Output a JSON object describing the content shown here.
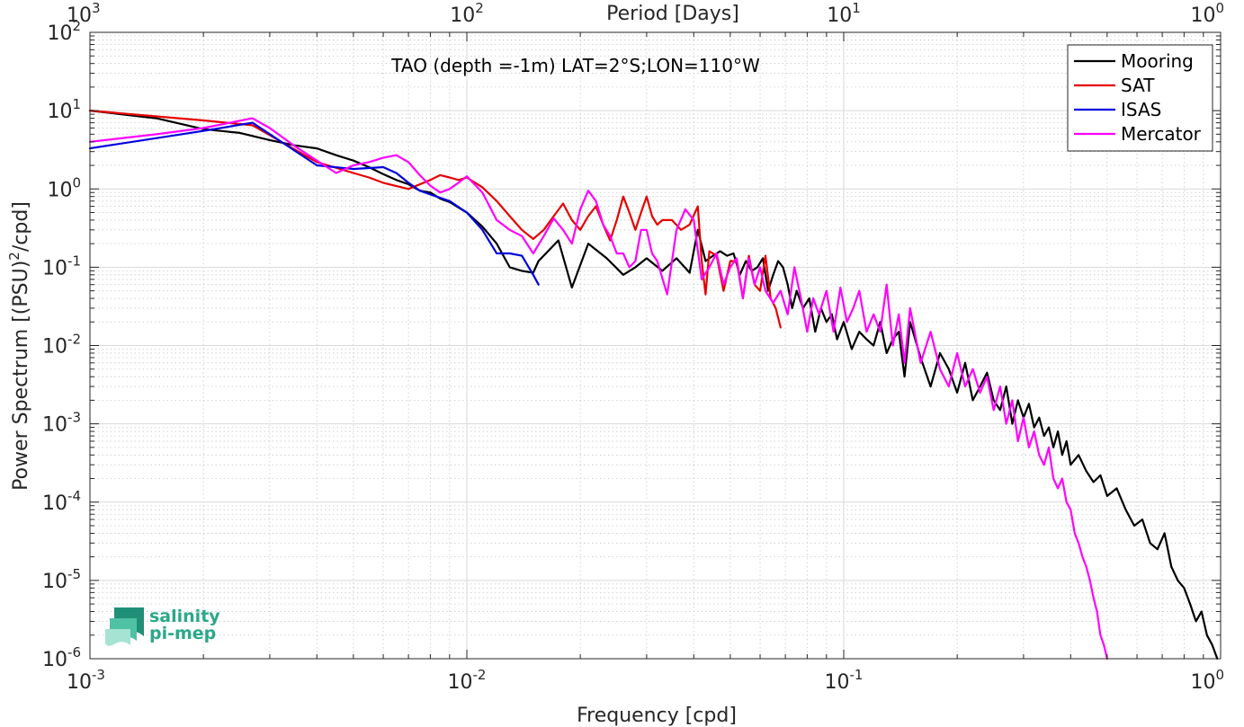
{
  "chart_data": {
    "type": "line",
    "xscale": "log",
    "yscale": "log",
    "xlim": [
      0.001,
      1
    ],
    "ylim": [
      1e-06,
      100
    ],
    "grid": true,
    "minor_grid": true,
    "xlabel": "Frequency [cpd]",
    "ylabel": "Power Spectrum [(PSU)",
    "ylabel_sup": "2",
    "ylabel_tail": "/cpd]",
    "top_xlabel": "Period [Days]",
    "annotation": "TAO (depth =-1m) LAT=2°S;LON=110°W",
    "legend_position": "top-right",
    "x_ticks": [
      {
        "base": "10",
        "exp": "-3",
        "value": 0.001
      },
      {
        "base": "10",
        "exp": "-2",
        "value": 0.01
      },
      {
        "base": "10",
        "exp": "-1",
        "value": 0.1
      },
      {
        "base": "10",
        "exp": "0",
        "value": 1
      }
    ],
    "top_ticks": [
      {
        "base": "10",
        "exp": "3",
        "value": 0.001
      },
      {
        "base": "10",
        "exp": "2",
        "value": 0.01
      },
      {
        "base": "10",
        "exp": "1",
        "value": 0.1
      },
      {
        "base": "10",
        "exp": "0",
        "value": 1
      }
    ],
    "y_ticks": [
      {
        "base": "10",
        "exp": "2",
        "value": 100
      },
      {
        "base": "10",
        "exp": "1",
        "value": 10
      },
      {
        "base": "10",
        "exp": "0",
        "value": 1
      },
      {
        "base": "10",
        "exp": "-1",
        "value": 0.1
      },
      {
        "base": "10",
        "exp": "-2",
        "value": 0.01
      },
      {
        "base": "10",
        "exp": "-3",
        "value": 0.001
      },
      {
        "base": "10",
        "exp": "-4",
        "value": 0.0001
      },
      {
        "base": "10",
        "exp": "-5",
        "value": 1e-05
      },
      {
        "base": "10",
        "exp": "-6",
        "value": 1e-06
      }
    ],
    "series": [
      {
        "name": "Mooring",
        "color": "#000000",
        "x": [
          0.001,
          0.0015,
          0.002,
          0.0025,
          0.003,
          0.0035,
          0.004,
          0.0045,
          0.005,
          0.0055,
          0.006,
          0.0065,
          0.007,
          0.0075,
          0.008,
          0.0085,
          0.009,
          0.0095,
          0.01,
          0.011,
          0.012,
          0.013,
          0.014,
          0.015,
          0.0155,
          0.0175,
          0.019,
          0.021,
          0.0235,
          0.026,
          0.028,
          0.03,
          0.033,
          0.036,
          0.039,
          0.041,
          0.043,
          0.045,
          0.047,
          0.049,
          0.051,
          0.053,
          0.055,
          0.057,
          0.059,
          0.061,
          0.063,
          0.065,
          0.067,
          0.069,
          0.071,
          0.073,
          0.075,
          0.078,
          0.081,
          0.084,
          0.087,
          0.09,
          0.093,
          0.096,
          0.1,
          0.105,
          0.11,
          0.115,
          0.12,
          0.125,
          0.13,
          0.135,
          0.14,
          0.145,
          0.15,
          0.16,
          0.17,
          0.18,
          0.19,
          0.2,
          0.21,
          0.22,
          0.23,
          0.24,
          0.25,
          0.26,
          0.27,
          0.28,
          0.29,
          0.3,
          0.31,
          0.32,
          0.33,
          0.34,
          0.35,
          0.36,
          0.37,
          0.38,
          0.39,
          0.4,
          0.42,
          0.44,
          0.46,
          0.48,
          0.5,
          0.53,
          0.56,
          0.59,
          0.62,
          0.65,
          0.68,
          0.71,
          0.74,
          0.77,
          0.8,
          0.83,
          0.86,
          0.89,
          0.92,
          0.95,
          0.98
        ],
        "y": [
          10,
          8,
          5.8,
          5.2,
          4.2,
          3.6,
          3.3,
          2.7,
          2.3,
          1.9,
          1.55,
          1.3,
          1.15,
          0.95,
          0.9,
          0.75,
          0.68,
          0.58,
          0.5,
          0.33,
          0.2,
          0.1,
          0.09,
          0.085,
          0.12,
          0.22,
          0.055,
          0.2,
          0.13,
          0.08,
          0.1,
          0.13,
          0.09,
          0.13,
          0.085,
          0.3,
          0.12,
          0.14,
          0.16,
          0.14,
          0.15,
          0.08,
          0.12,
          0.09,
          0.1,
          0.13,
          0.05,
          0.08,
          0.12,
          0.1,
          0.06,
          0.03,
          0.05,
          0.03,
          0.04,
          0.015,
          0.03,
          0.02,
          0.025,
          0.012,
          0.02,
          0.009,
          0.015,
          0.012,
          0.01,
          0.02,
          0.008,
          0.012,
          0.015,
          0.004,
          0.02,
          0.007,
          0.003,
          0.008,
          0.005,
          0.0025,
          0.006,
          0.002,
          0.003,
          0.0045,
          0.002,
          0.0015,
          0.003,
          0.001,
          0.002,
          0.0012,
          0.0018,
          0.0009,
          0.0012,
          0.0007,
          0.0009,
          0.0005,
          0.0008,
          0.0004,
          0.0006,
          0.0003,
          0.0004,
          0.00025,
          0.00018,
          0.00022,
          0.00012,
          0.00015,
          8e-05,
          5e-05,
          6e-05,
          3e-05,
          2.5e-05,
          4e-05,
          1.5e-05,
          1e-05,
          8e-06,
          5e-06,
          3e-06,
          4e-06,
          2e-06,
          1.5e-06,
          1e-06
        ]
      },
      {
        "name": "SAT",
        "color": "#e60000",
        "x": [
          0.001,
          0.002,
          0.0027,
          0.004,
          0.005,
          0.0055,
          0.006,
          0.007,
          0.008,
          0.0085,
          0.009,
          0.0095,
          0.01,
          0.011,
          0.012,
          0.013,
          0.014,
          0.015,
          0.016,
          0.017,
          0.018,
          0.019,
          0.02,
          0.021,
          0.022,
          0.023,
          0.024,
          0.025,
          0.026,
          0.027,
          0.028,
          0.029,
          0.03,
          0.031,
          0.032,
          0.033,
          0.035,
          0.037,
          0.039,
          0.041,
          0.042,
          0.043,
          0.044,
          0.046,
          0.048,
          0.05,
          0.052,
          0.054,
          0.056,
          0.058,
          0.06,
          0.062,
          0.064,
          0.066,
          0.068
        ],
        "y": [
          10,
          7.5,
          6.5,
          2.2,
          1.6,
          1.4,
          1.2,
          1.0,
          1.3,
          1.5,
          1.4,
          1.3,
          1.4,
          1.05,
          0.7,
          0.45,
          0.3,
          0.23,
          0.3,
          0.45,
          0.65,
          0.4,
          0.3,
          0.45,
          0.6,
          0.35,
          0.22,
          0.4,
          0.8,
          0.5,
          0.3,
          0.5,
          0.8,
          0.45,
          0.35,
          0.4,
          0.4,
          0.3,
          0.35,
          0.6,
          0.12,
          0.045,
          0.16,
          0.14,
          0.05,
          0.12,
          0.12,
          0.04,
          0.14,
          0.06,
          0.05,
          0.14,
          0.04,
          0.03,
          0.017
        ]
      },
      {
        "name": "ISAS",
        "color": "#0000dd",
        "x": [
          0.001,
          0.002,
          0.0027,
          0.004,
          0.005,
          0.0055,
          0.006,
          0.0065,
          0.007,
          0.0075,
          0.008,
          0.009,
          0.01,
          0.011,
          0.012,
          0.013,
          0.014,
          0.015,
          0.0155
        ],
        "y": [
          3.3,
          5.5,
          7.0,
          2.0,
          1.8,
          1.85,
          1.9,
          1.6,
          1.2,
          0.95,
          0.85,
          0.7,
          0.5,
          0.3,
          0.15,
          0.15,
          0.14,
          0.08,
          0.06
        ]
      },
      {
        "name": "Mercator",
        "color": "#ff00ff",
        "x": [
          0.001,
          0.0015,
          0.002,
          0.0027,
          0.003,
          0.0035,
          0.004,
          0.0045,
          0.005,
          0.0055,
          0.006,
          0.0065,
          0.007,
          0.0075,
          0.008,
          0.0085,
          0.009,
          0.0095,
          0.01,
          0.011,
          0.012,
          0.013,
          0.014,
          0.015,
          0.016,
          0.017,
          0.018,
          0.019,
          0.02,
          0.021,
          0.022,
          0.023,
          0.024,
          0.025,
          0.026,
          0.027,
          0.028,
          0.029,
          0.03,
          0.031,
          0.032,
          0.034,
          0.036,
          0.038,
          0.04,
          0.042,
          0.044,
          0.046,
          0.048,
          0.05,
          0.052,
          0.054,
          0.056,
          0.058,
          0.06,
          0.062,
          0.065,
          0.068,
          0.071,
          0.074,
          0.077,
          0.08,
          0.083,
          0.086,
          0.09,
          0.094,
          0.098,
          0.102,
          0.106,
          0.11,
          0.115,
          0.12,
          0.125,
          0.13,
          0.135,
          0.14,
          0.145,
          0.15,
          0.16,
          0.17,
          0.18,
          0.19,
          0.2,
          0.21,
          0.22,
          0.23,
          0.24,
          0.25,
          0.26,
          0.27,
          0.28,
          0.29,
          0.3,
          0.31,
          0.32,
          0.33,
          0.34,
          0.35,
          0.36,
          0.37,
          0.38,
          0.39,
          0.4,
          0.41,
          0.42,
          0.43,
          0.44,
          0.45,
          0.46,
          0.47,
          0.48,
          0.49,
          0.5
        ],
        "y": [
          4.0,
          5.0,
          6.0,
          8.0,
          6.0,
          3.5,
          2.3,
          1.6,
          2.0,
          2.2,
          2.5,
          2.7,
          2.2,
          1.5,
          1.1,
          0.9,
          1.0,
          1.2,
          1.45,
          0.9,
          0.4,
          0.3,
          0.25,
          0.15,
          0.25,
          0.42,
          0.3,
          0.2,
          0.55,
          0.95,
          0.7,
          0.35,
          0.25,
          0.15,
          0.15,
          0.1,
          0.12,
          0.3,
          0.3,
          0.15,
          0.12,
          0.045,
          0.3,
          0.55,
          0.4,
          0.07,
          0.1,
          0.15,
          0.06,
          0.1,
          0.13,
          0.04,
          0.13,
          0.06,
          0.1,
          0.05,
          0.035,
          0.05,
          0.025,
          0.1,
          0.04,
          0.015,
          0.04,
          0.025,
          0.05,
          0.015,
          0.055,
          0.02,
          0.03,
          0.05,
          0.015,
          0.025,
          0.015,
          0.06,
          0.01,
          0.025,
          0.006,
          0.03,
          0.006,
          0.015,
          0.005,
          0.003,
          0.008,
          0.003,
          0.005,
          0.0025,
          0.004,
          0.0015,
          0.003,
          0.001,
          0.002,
          0.0006,
          0.0012,
          0.0005,
          0.0008,
          0.0004,
          0.0003,
          0.0005,
          0.0002,
          0.00015,
          0.0002,
          0.0001,
          8e-05,
          4e-05,
          3e-05,
          2e-05,
          1.5e-05,
          1e-05,
          6e-06,
          4e-06,
          2e-06,
          1.5e-06,
          1e-06
        ]
      }
    ]
  },
  "logo": {
    "line1": "salinity",
    "line2": "pi-mep",
    "text_color": "#2aa88a"
  }
}
